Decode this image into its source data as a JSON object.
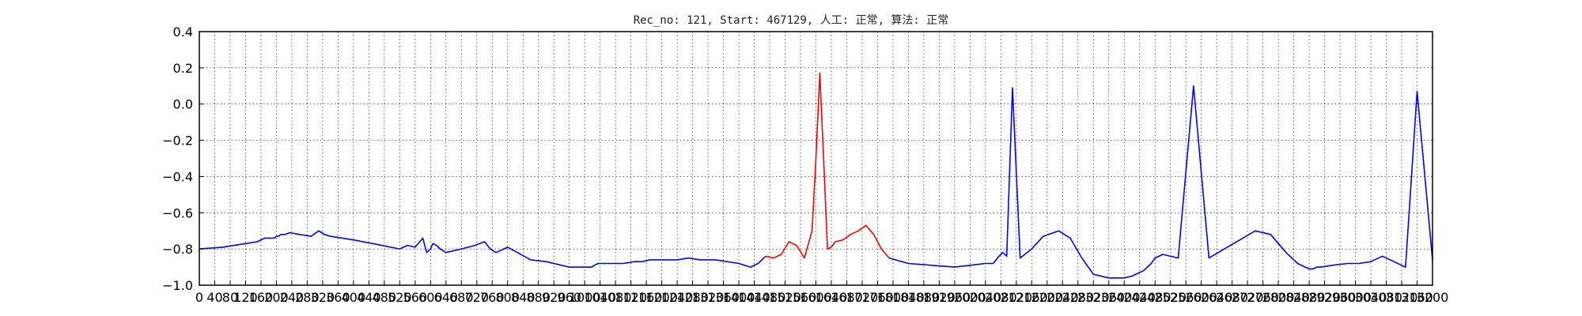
{
  "chart_data": {
    "type": "line",
    "title": "Rec_no: 121, Start: 467129, 人工: 正常, 算法: 正常",
    "xlabel": "",
    "ylabel": "",
    "xlim": [
      0,
      3200
    ],
    "ylim": [
      -1.0,
      0.4
    ],
    "grid": true,
    "grid_style": "dotted",
    "y_ticks": [
      0.4,
      0.2,
      0.0,
      -0.2,
      -0.4,
      -0.6,
      -0.8,
      -1.0
    ],
    "y_tick_labels": [
      "0.4",
      "0.2",
      "0.0",
      "−0.2",
      "−0.4",
      "−0.6",
      "−0.8",
      "−1.0"
    ],
    "x_ticks": [
      0,
      40,
      80,
      120,
      160,
      200,
      240,
      280,
      320,
      360,
      400,
      440,
      480,
      520,
      560,
      600,
      640,
      680,
      720,
      760,
      800,
      840,
      880,
      920,
      960,
      1000,
      1040,
      1080,
      1120,
      1160,
      1200,
      1240,
      1280,
      1320,
      1360,
      1400,
      1440,
      1480,
      1520,
      1560,
      1600,
      1640,
      1680,
      1720,
      1760,
      1800,
      1840,
      1880,
      1920,
      1960,
      2000,
      2040,
      2080,
      2120,
      2160,
      2200,
      2240,
      2280,
      2320,
      2360,
      2400,
      2440,
      2480,
      2520,
      2560,
      2600,
      2640,
      2680,
      2720,
      2760,
      2800,
      2840,
      2880,
      2920,
      2960,
      3000,
      3040,
      3080,
      3120,
      3160,
      3200
    ],
    "series": [
      {
        "color": "#0000ff",
        "x": [
          0,
          60,
          120,
          150,
          170,
          185,
          195,
          200,
          205,
          212,
          222,
          235,
          260,
          290,
          310,
          325,
          340,
          400,
          450,
          520,
          540,
          560,
          580,
          590,
          600,
          606,
          615,
          625,
          640,
          680,
          715,
          740,
          755,
          770,
          800,
          860,
          900,
          960,
          985,
          1000,
          1010,
          1018,
          1025,
          1035,
          1060,
          1100,
          1130,
          1150,
          1170,
          1200,
          1240,
          1270,
          1300,
          1340,
          1400,
          1430,
          1450,
          1460,
          1465,
          1470
        ],
        "y": [
          -0.8,
          -0.79,
          -0.77,
          -0.76,
          -0.74,
          -0.74,
          -0.74,
          -0.73,
          -0.73,
          -0.72,
          -0.72,
          -0.71,
          -0.72,
          -0.73,
          -0.7,
          -0.72,
          -0.73,
          -0.75,
          -0.77,
          -0.8,
          -0.78,
          -0.79,
          -0.74,
          -0.82,
          -0.8,
          -0.77,
          -0.78,
          -0.8,
          -0.82,
          -0.8,
          -0.78,
          -0.76,
          -0.8,
          -0.82,
          -0.79,
          -0.86,
          -0.87,
          -0.9,
          -0.9,
          -0.9,
          -0.9,
          -0.9,
          -0.89,
          -0.88,
          -0.88,
          -0.88,
          -0.87,
          -0.87,
          -0.86,
          -0.86,
          -0.86,
          -0.85,
          -0.86,
          -0.86,
          -0.88,
          -0.9,
          -0.88,
          -0.86,
          -0.85,
          -0.84
        ]
      },
      {
        "color": "#ff0000",
        "x": [
          1470,
          1490,
          1510,
          1530,
          1550,
          1570,
          1590,
          1600,
          1610,
          1620,
          1630,
          1640,
          1650,
          1670,
          1690,
          1710,
          1730,
          1750,
          1770,
          1790
        ],
        "y": [
          -0.84,
          -0.85,
          -0.83,
          -0.76,
          -0.78,
          -0.85,
          -0.7,
          -0.3,
          0.17,
          -0.3,
          -0.8,
          -0.79,
          -0.76,
          -0.75,
          -0.72,
          -0.7,
          -0.67,
          -0.72,
          -0.8,
          -0.85
        ]
      },
      {
        "color": "#0000ff",
        "x": [
          1790,
          1840,
          1900,
          1960,
          2000,
          2040,
          2060,
          2075,
          2085,
          2095,
          2110,
          2130,
          2160,
          2190,
          2230,
          2260,
          2290,
          2320,
          2360,
          2400,
          2420,
          2440,
          2450,
          2460,
          2470,
          2480,
          2500,
          2540,
          2580,
          2620,
          2660,
          2700,
          2740,
          2780,
          2820,
          2850,
          2870,
          2880,
          2890,
          2900,
          2910,
          2940,
          2980,
          3010,
          3040,
          3070,
          3100,
          3130,
          3160,
          3200
        ],
        "y": [
          -0.85,
          -0.88,
          -0.89,
          -0.9,
          -0.89,
          -0.88,
          -0.88,
          -0.84,
          -0.82,
          -0.84,
          0.09,
          -0.85,
          -0.8,
          -0.73,
          -0.7,
          -0.74,
          -0.85,
          -0.94,
          -0.96,
          -0.96,
          -0.95,
          -0.93,
          -0.92,
          -0.9,
          -0.88,
          -0.85,
          -0.83,
          -0.85,
          0.1,
          -0.85,
          -0.8,
          -0.75,
          -0.7,
          -0.72,
          -0.82,
          -0.88,
          -0.9,
          -0.91,
          -0.91,
          -0.9,
          -0.9,
          -0.89,
          -0.88,
          -0.88,
          -0.87,
          -0.84,
          -0.87,
          -0.9,
          0.07,
          -0.86
        ]
      }
    ]
  }
}
